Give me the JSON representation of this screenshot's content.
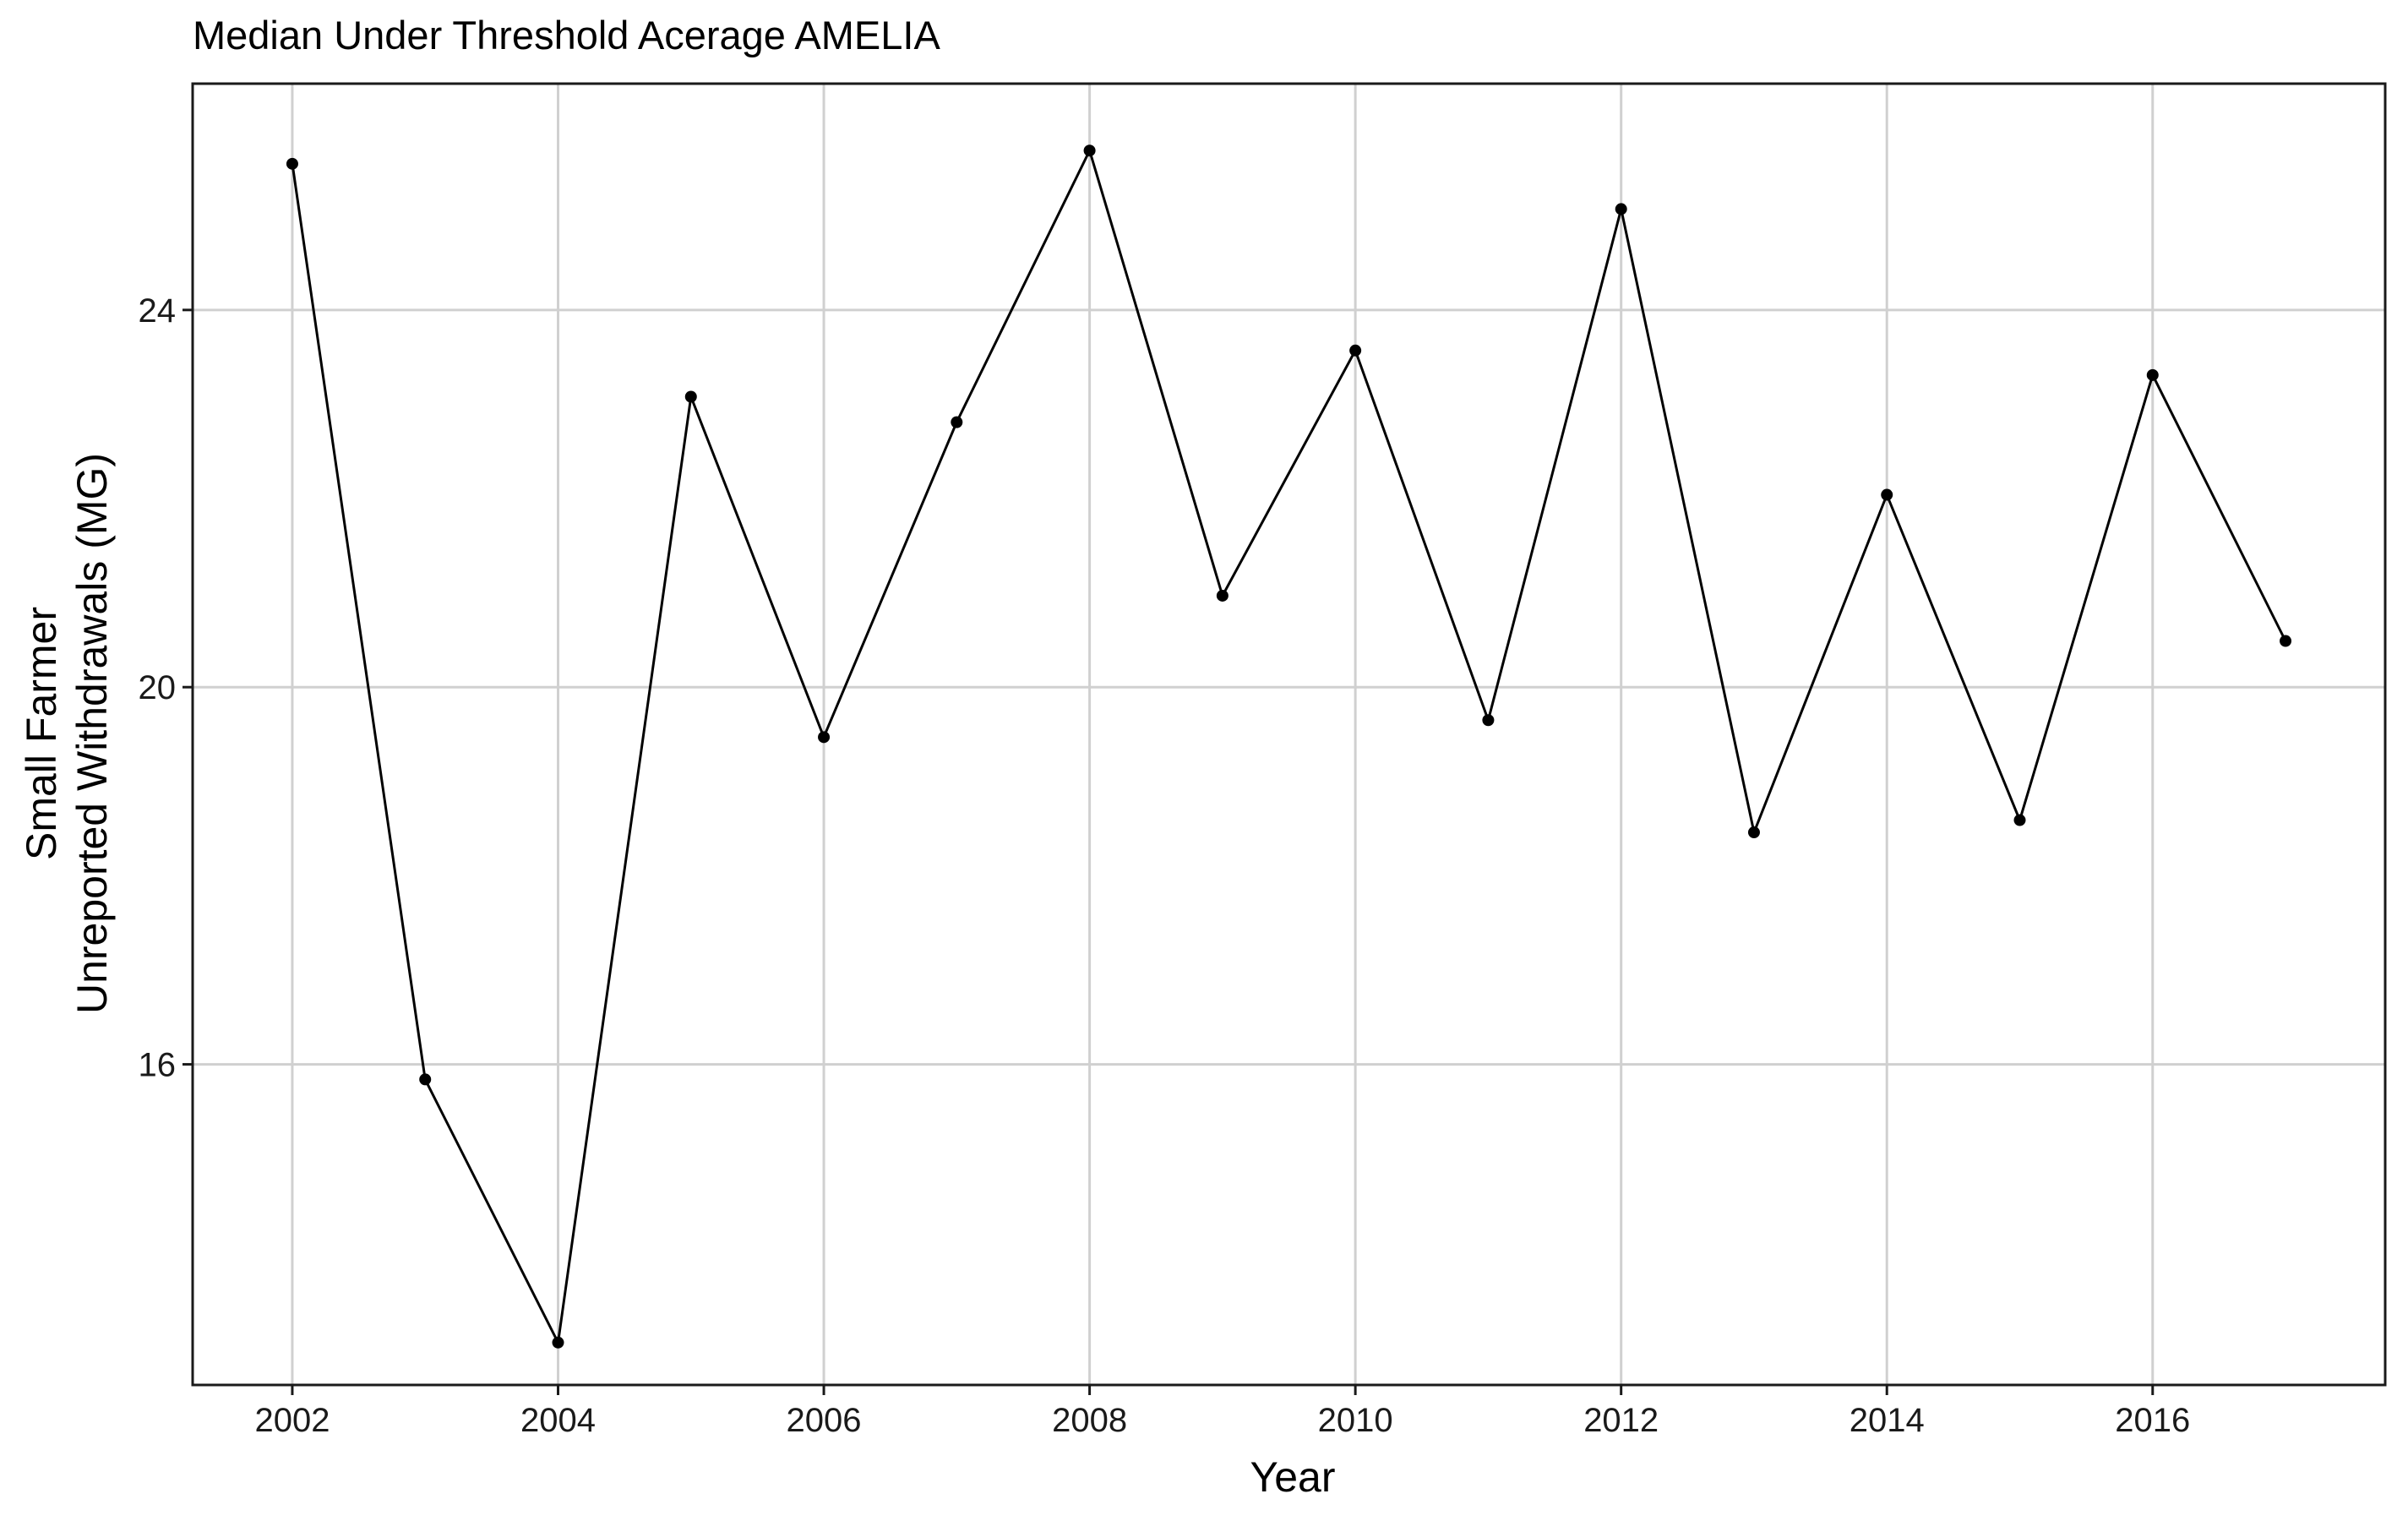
{
  "chart_data": {
    "type": "line",
    "title": "Median Under Threshold Acerage AMELIA",
    "xlabel": "Year",
    "ylabel_lines": [
      "Small Farmer",
      "Unreported Withdrawals (MG)"
    ],
    "x_ticks": [
      2002,
      2004,
      2006,
      2008,
      2010,
      2012,
      2014,
      2016
    ],
    "y_ticks": [
      16,
      20,
      24
    ],
    "xlim": [
      2001.25,
      2017.75
    ],
    "ylim": [
      12.6,
      26.4
    ],
    "grid": true,
    "legend": "none",
    "series": [
      {
        "x": [
          2002,
          2003,
          2004,
          2005,
          2006,
          2007,
          2008,
          2009,
          2010,
          2011,
          2012,
          2013,
          2014,
          2015,
          2016,
          2017
        ],
        "y": [
          25.55,
          15.84,
          13.05,
          23.08,
          19.47,
          22.81,
          25.69,
          20.97,
          23.57,
          19.65,
          25.07,
          18.46,
          22.04,
          18.59,
          23.31,
          20.49
        ]
      }
    ]
  }
}
